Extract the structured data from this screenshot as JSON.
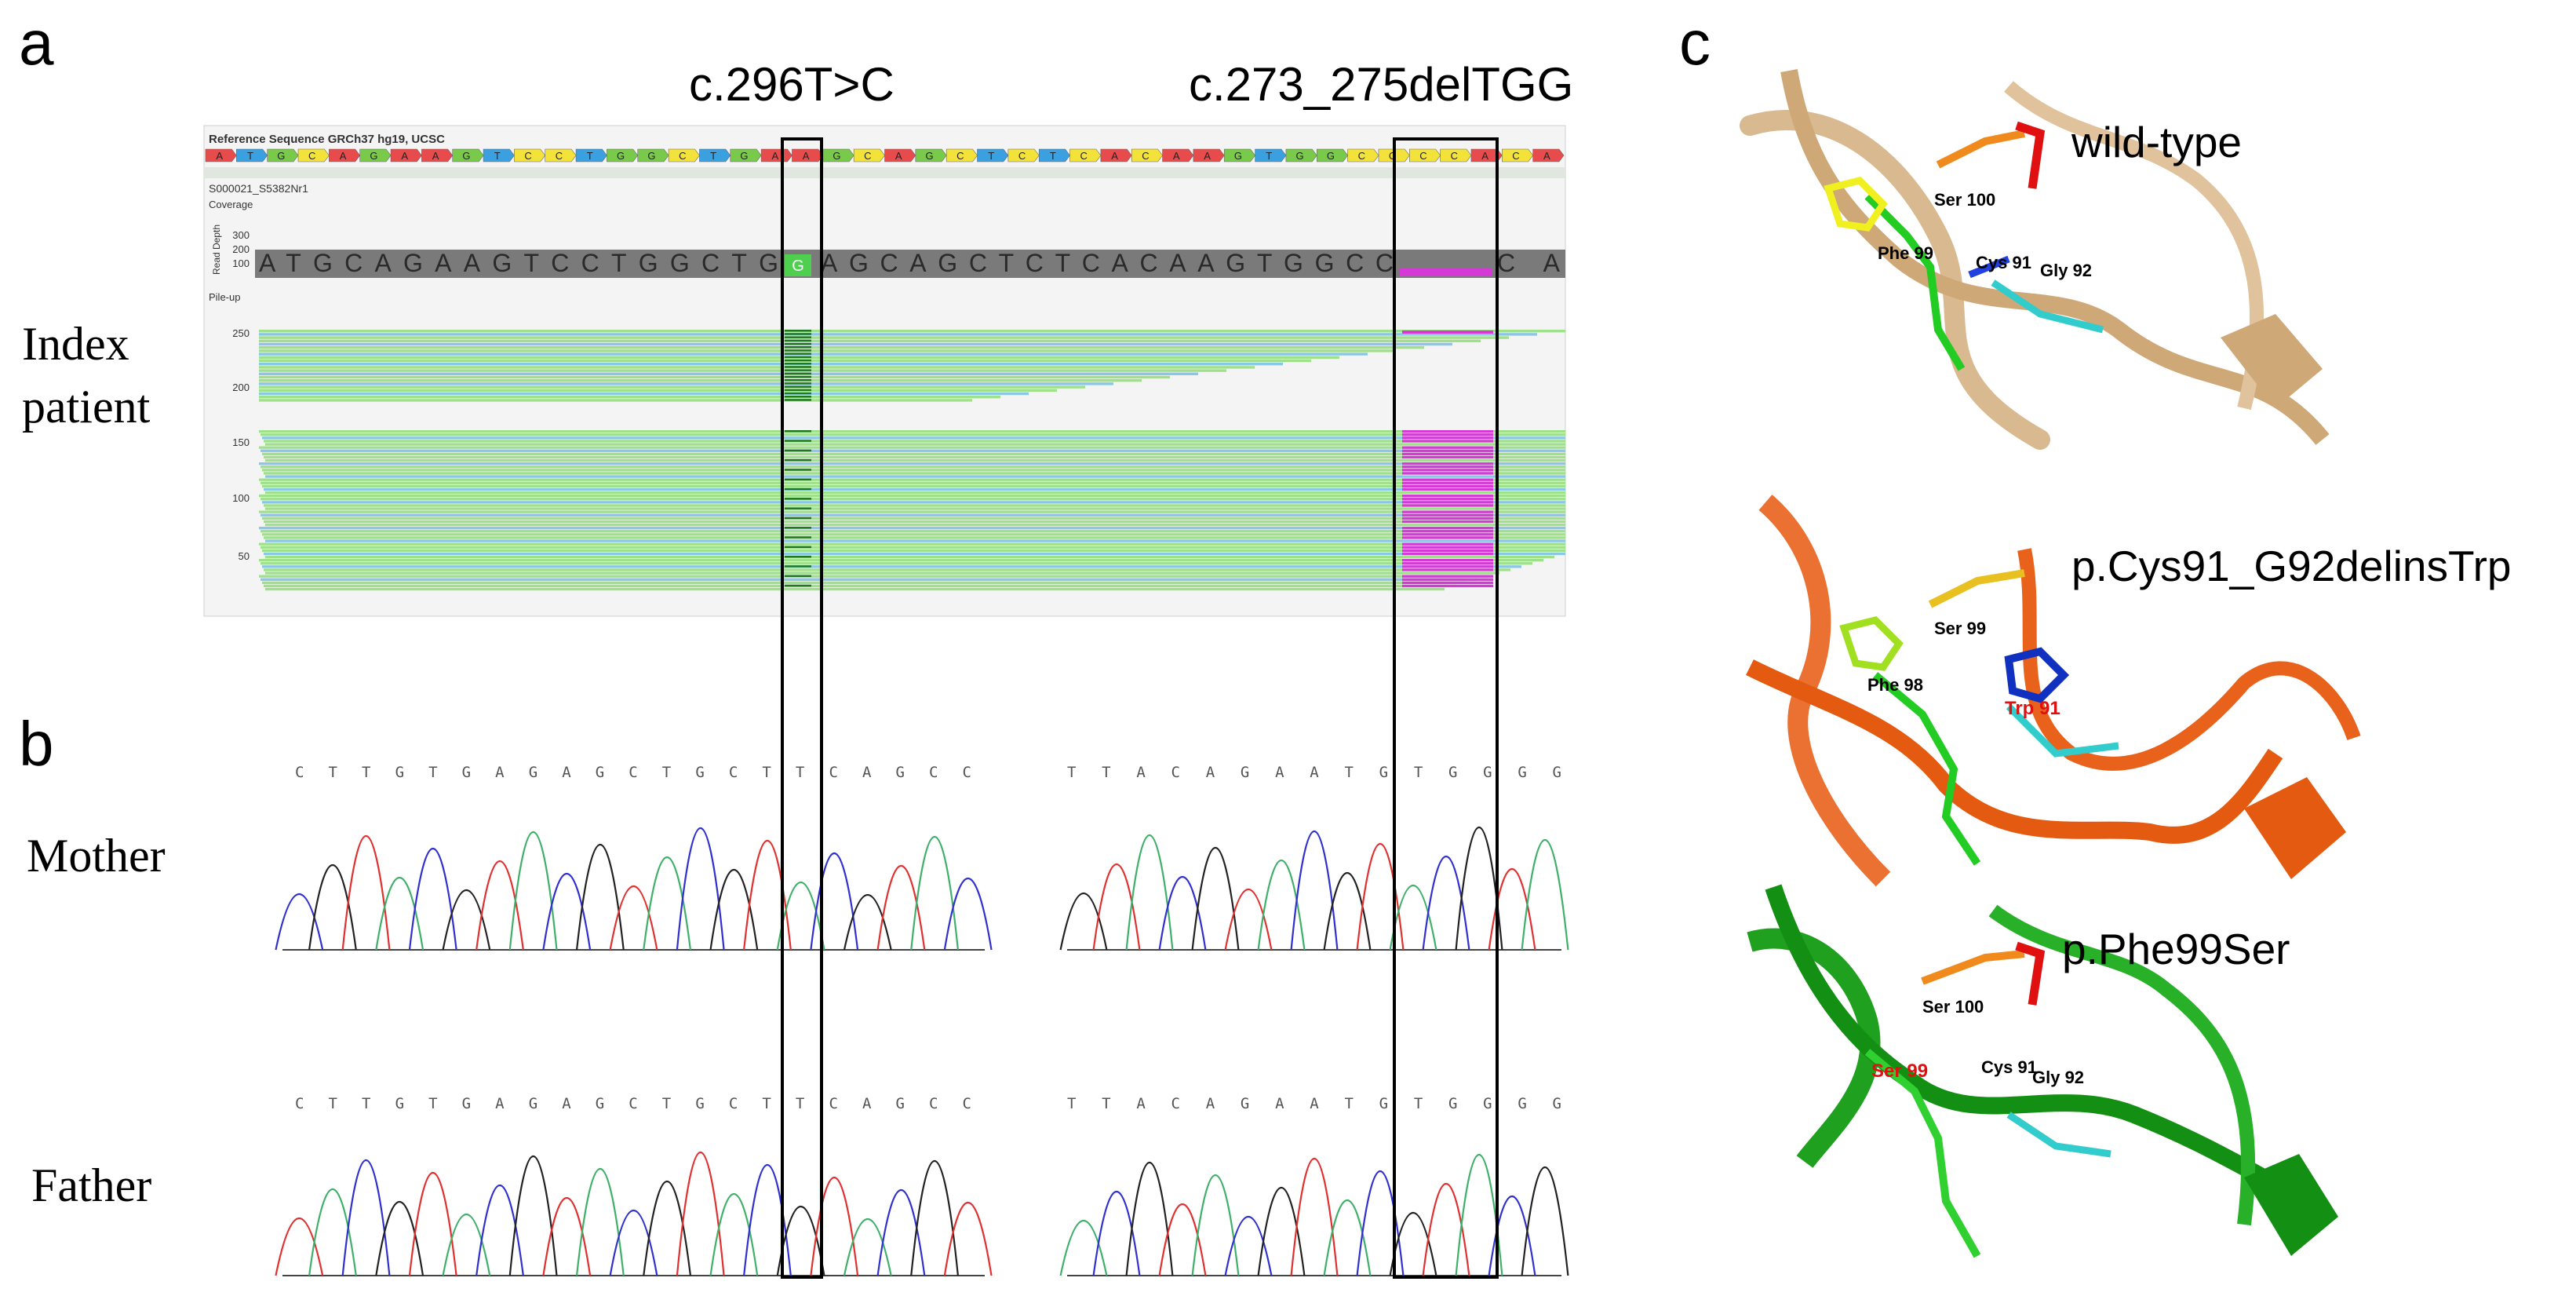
{
  "panels": {
    "a": {
      "letter": "a",
      "row_label_line1": "Index",
      "row_label_line2": "patient",
      "mut1_label": "c.296T>C",
      "mut2_label": "c.273_275delTGG",
      "ref_title": "Reference Sequence GRCh37 hg19, UCSC",
      "ref_bases": "ATGCAGAAGTCCTGGCTGAAGCAGCTCTCACAAGTGGCCCCACA",
      "sample_name": "S000021_S5382Nr1",
      "coverage_label": "Coverage",
      "read_depth_label": "Read Depth",
      "depth_ticks": [
        "300",
        "200",
        "100"
      ],
      "consensus_left": "ATGCAGAAGTCCTGGCTG",
      "consensus_variant": "G",
      "consensus_right": "AGCAGCTCTCACAAGTGGCC",
      "consensus_tail": "CA",
      "pileup_label": "Pile-up",
      "pileup_ticks": [
        "250",
        "200",
        "150",
        "100",
        "50"
      ]
    },
    "b": {
      "letter": "b",
      "mother_label": "Mother",
      "father_label": "Father",
      "seq_left": "CTTGTGAGAGCTGCTTCAGCC",
      "seq_right": "TTACAGAATGTGGGG"
    },
    "c": {
      "letter": "c",
      "wt_label": "wild-type",
      "mut1_label": "p.Cys91_G92delinsTrp",
      "mut2_label": "p.Phe99Ser",
      "wt_residues": [
        "Ser 100",
        "Phe 99",
        "Cys 91",
        "Gly 92"
      ],
      "mut1_residues": [
        "Ser 99",
        "Phe 98",
        "Trp 91"
      ],
      "mut2_residues": [
        "Ser 100",
        "Ser 99",
        "Cys 91",
        "Gly 92"
      ]
    }
  },
  "colors": {
    "base_A": "#e84b4b",
    "base_C": "#f2e23a",
    "base_G": "#79c94b",
    "base_T": "#3aa0e0",
    "trace_A": "#3fb06a",
    "trace_C": "#3030d0",
    "trace_G": "#222222",
    "trace_T": "#e03030",
    "read_green": "#9fe08a",
    "read_blue": "#8ac6e6",
    "deletion": "#d63ad6",
    "wt_protein": "#d9b98f",
    "mut1_protein": "#e8621c",
    "mut2_protein": "#1fa01f",
    "mutation_label": "#e01010"
  }
}
